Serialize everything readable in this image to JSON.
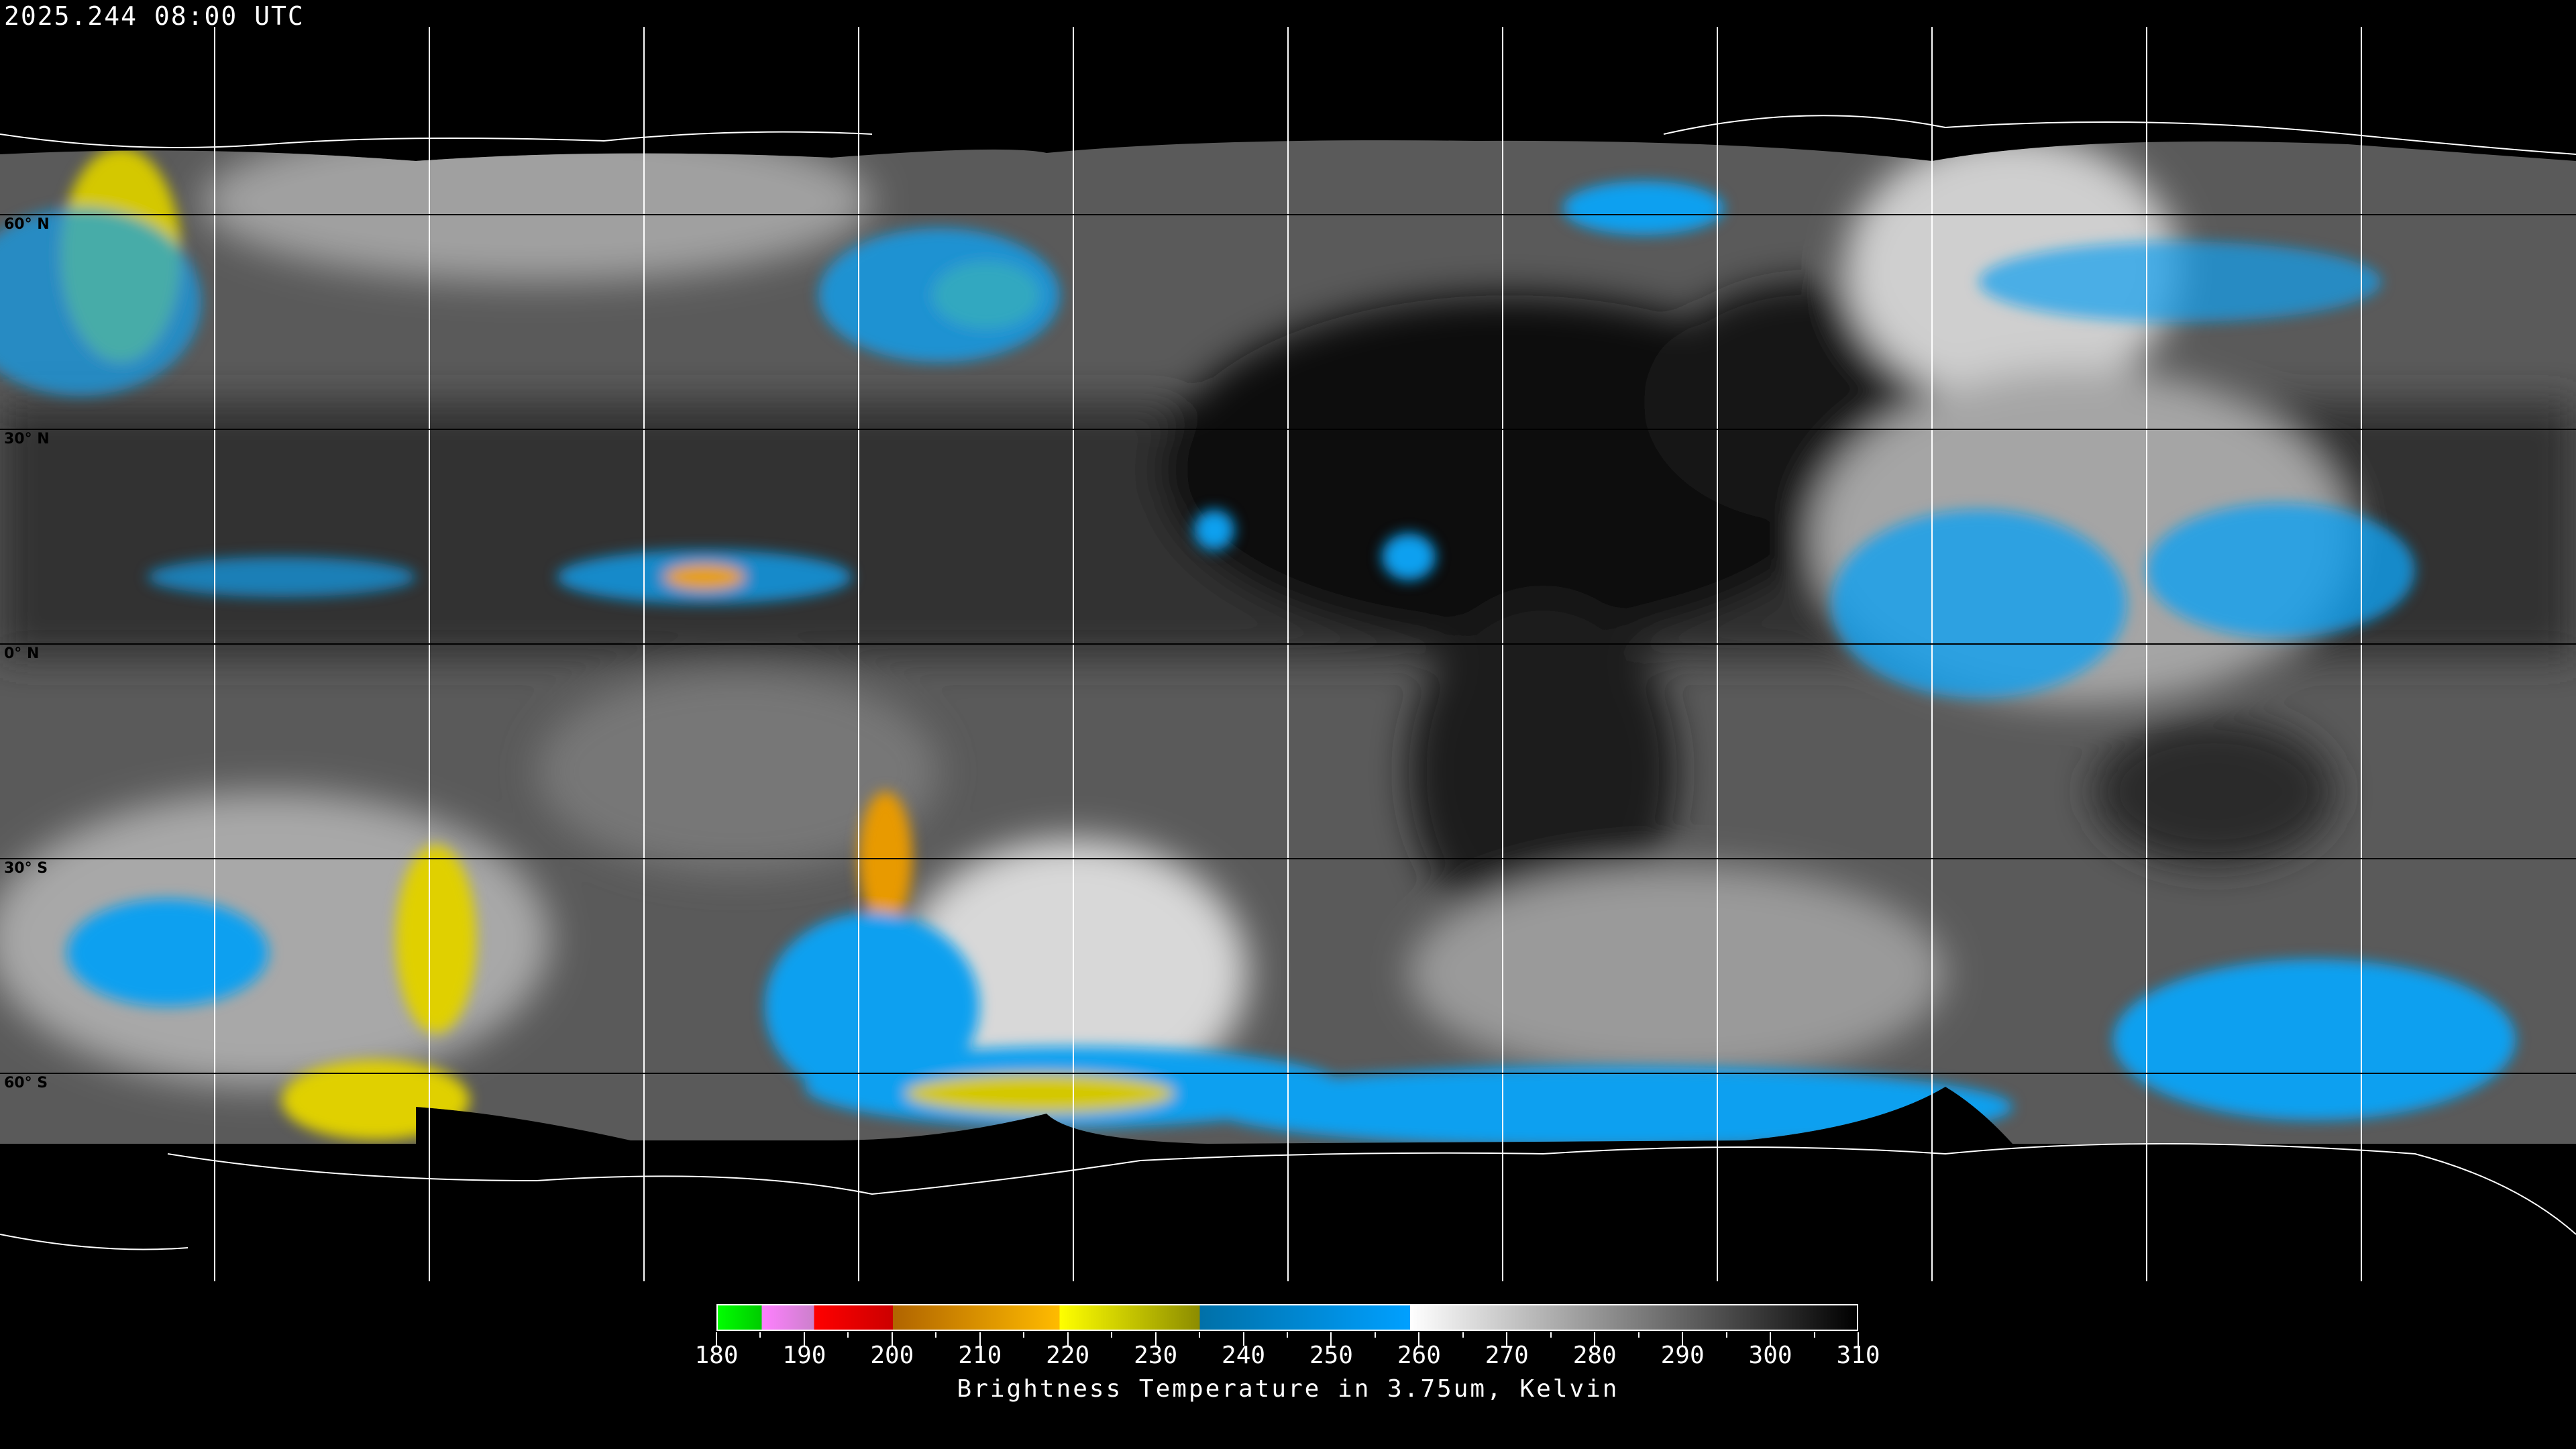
{
  "timestamp": "2025.244 08:00 UTC",
  "map": {
    "projection": "equirectangular",
    "grid_spacing_deg": 30,
    "lat_labels": [
      "60° N",
      "30° N",
      "0° N",
      "30° S",
      "60° S"
    ],
    "colors": {
      "background": "#000000",
      "grid": "#ffffff",
      "coastline": "#ffffff"
    }
  },
  "colorbar": {
    "title": "Brightness Temperature in 3.75um, Kelvin",
    "min": 180,
    "max": 310,
    "tick_labels": [
      "180",
      "190",
      "200",
      "210",
      "220",
      "230",
      "240",
      "250",
      "260",
      "270",
      "280",
      "290",
      "300",
      "310"
    ],
    "segments": [
      {
        "from": 180,
        "to": 185,
        "start": "#00ff00",
        "end": "#00cc00"
      },
      {
        "from": 185,
        "to": 191,
        "start": "#ff80ff",
        "end": "#cc80cc"
      },
      {
        "from": 191,
        "to": 200,
        "start": "#ff0000",
        "end": "#cc0000"
      },
      {
        "from": 200,
        "to": 219,
        "start": "#b06400",
        "end": "#ffbb00"
      },
      {
        "from": 219,
        "to": 235,
        "start": "#ffff00",
        "end": "#8c8c00"
      },
      {
        "from": 235,
        "to": 259,
        "start": "#0070a8",
        "end": "#00a0ff"
      },
      {
        "from": 259,
        "to": 310,
        "start": "#ffffff",
        "end": "#000000"
      }
    ]
  }
}
